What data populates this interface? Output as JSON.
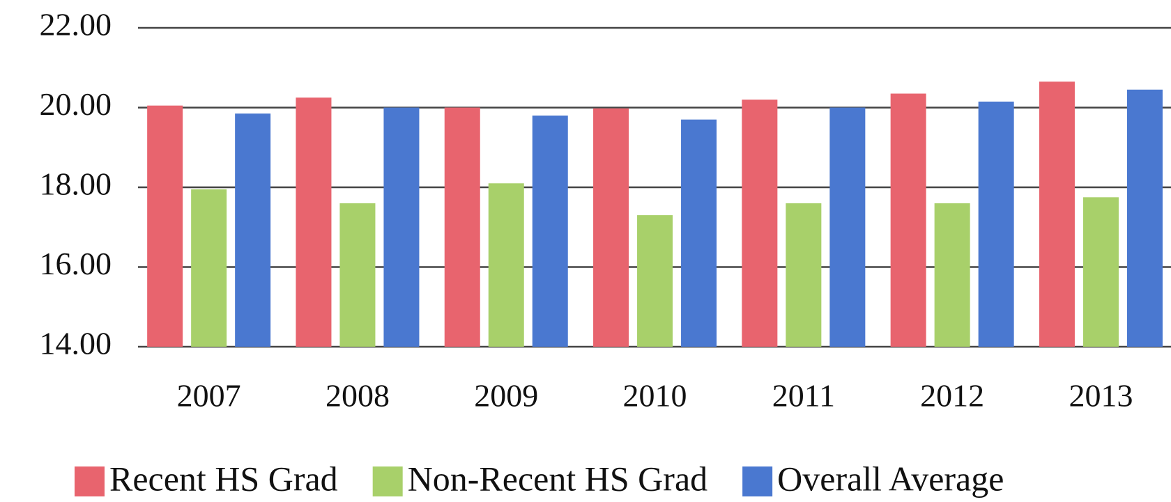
{
  "chart_data": {
    "type": "bar",
    "categories": [
      "2007",
      "2008",
      "2009",
      "2010",
      "2011",
      "2012",
      "2013"
    ],
    "series": [
      {
        "name": "Recent HS Grad",
        "color": "#e8646e",
        "values": [
          20.05,
          20.25,
          20.0,
          19.98,
          20.2,
          20.35,
          20.65
        ]
      },
      {
        "name": "Non-Recent HS Grad",
        "color": "#a8d06a",
        "values": [
          17.95,
          17.6,
          18.1,
          17.3,
          17.6,
          17.6,
          17.75
        ]
      },
      {
        "name": "Overall Average",
        "color": "#4a78d0",
        "values": [
          19.85,
          20.0,
          19.8,
          19.7,
          20.0,
          20.15,
          20.45
        ]
      }
    ],
    "ylim": [
      14,
      22
    ],
    "yticks": [
      {
        "value": 14,
        "label": "14.00"
      },
      {
        "value": 16,
        "label": "16.00"
      },
      {
        "value": 18,
        "label": "18.00"
      },
      {
        "value": 20,
        "label": "20.00"
      },
      {
        "value": 22,
        "label": "22.00"
      }
    ],
    "grid": true,
    "legend": "bottom"
  }
}
